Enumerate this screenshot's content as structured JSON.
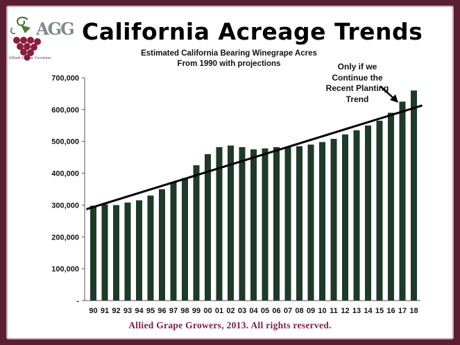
{
  "logo": {
    "monogram": "AGG",
    "caption": "Allied Grape Growers"
  },
  "slide": {
    "title": "California Acreage Trends",
    "subtitle_line1": "Estimated California Bearing Winegrape Acres",
    "subtitle_line2": "From 1990 with projections",
    "annotation_line1": "Only if we",
    "annotation_line2": "Continue the",
    "annotation_line3": "Recent Planting",
    "annotation_line4": "Trend",
    "footer": "Allied Grape Growers, 2013.  All rights reserved."
  },
  "colors": {
    "bar": "#1e3a29",
    "frame": "#5a1f33",
    "footer_text": "#7a1f40"
  },
  "chart_data": {
    "type": "bar",
    "title": "California Acreage Trends",
    "subtitle": "Estimated California Bearing Winegrape Acres From 1990 with projections",
    "categories": [
      "90",
      "91",
      "92",
      "93",
      "94",
      "95",
      "96",
      "97",
      "98",
      "99",
      "00",
      "01",
      "02",
      "03",
      "04",
      "05",
      "06",
      "07",
      "08",
      "09",
      "10",
      "11",
      "12",
      "13",
      "14",
      "15",
      "16",
      "17",
      "18"
    ],
    "values": [
      298000,
      302000,
      300000,
      308000,
      315000,
      330000,
      350000,
      372000,
      385000,
      425000,
      460000,
      482000,
      487000,
      482000,
      475000,
      478000,
      482000,
      482000,
      485000,
      490000,
      498000,
      508000,
      522000,
      535000,
      550000,
      565000,
      590000,
      625000,
      660000
    ],
    "ylim": [
      0,
      700000
    ],
    "yticks": [
      0,
      100000,
      200000,
      300000,
      400000,
      500000,
      600000,
      700000
    ],
    "ytick_labels": [
      "-",
      "100,000",
      "200,000",
      "300,000",
      "400,000",
      "500,000",
      "600,000",
      "700,000"
    ],
    "trend_line": {
      "start": [
        "90",
        287000
      ],
      "end": [
        "18",
        613000
      ]
    },
    "grid": false,
    "legend": "none"
  }
}
